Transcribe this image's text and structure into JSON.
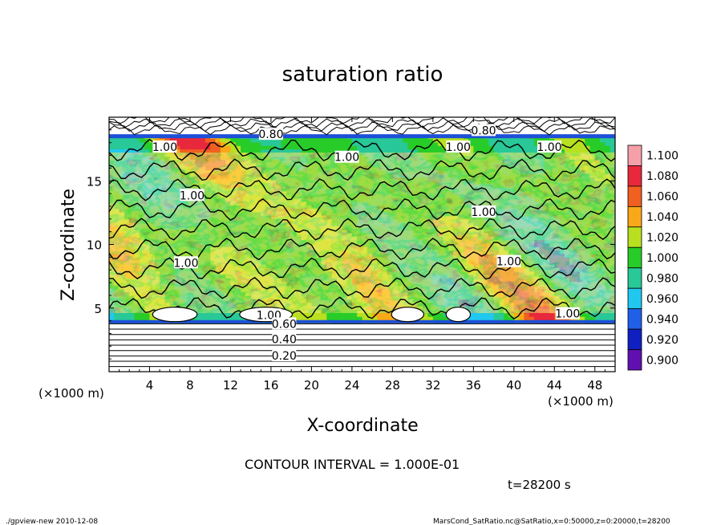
{
  "chart_data": {
    "type": "heatmap",
    "title": "saturation ratio",
    "xlabel": "X-coordinate",
    "ylabel": "Z-coordinate",
    "x_unit_left": "(×1000 m)",
    "x_unit_right": "(×1000 m)",
    "xlim": [
      0,
      50
    ],
    "ylim": [
      0,
      20
    ],
    "x_ticks": [
      4,
      8,
      12,
      16,
      20,
      24,
      28,
      32,
      36,
      40,
      44,
      48
    ],
    "y_ticks": [
      5,
      10,
      15
    ],
    "colorbar": {
      "levels": [
        "1.100",
        "1.080",
        "1.060",
        "1.040",
        "1.020",
        "1.000",
        "0.980",
        "0.960",
        "0.940",
        "0.920",
        "0.900"
      ],
      "colors": [
        "#f5a0a8",
        "#e8283c",
        "#f06020",
        "#f8a818",
        "#b8e020",
        "#28cc28",
        "#28c898",
        "#20c8f0",
        "#2060e8",
        "#1020c0",
        "#6010b0"
      ]
    },
    "contour_labels": [
      {
        "text": "0.80",
        "x": 16.0,
        "z": 18.6
      },
      {
        "text": "0.80",
        "x": 37.0,
        "z": 18.9
      },
      {
        "text": "1.00",
        "x": 5.5,
        "z": 17.6
      },
      {
        "text": "1.00",
        "x": 23.5,
        "z": 16.8
      },
      {
        "text": "1.00",
        "x": 34.5,
        "z": 17.6
      },
      {
        "text": "1.00",
        "x": 43.5,
        "z": 17.6
      },
      {
        "text": "1.00",
        "x": 8.2,
        "z": 13.8
      },
      {
        "text": "1.00",
        "x": 37.0,
        "z": 12.5
      },
      {
        "text": "1.00",
        "x": 7.6,
        "z": 8.5
      },
      {
        "text": "1.00",
        "x": 39.5,
        "z": 8.6
      },
      {
        "text": "1.00",
        "x": 15.8,
        "z": 4.4
      },
      {
        "text": "1.00",
        "x": 45.3,
        "z": 4.5
      },
      {
        "text": "0.60",
        "x": 17.3,
        "z": 3.7
      },
      {
        "text": "0.40",
        "x": 17.3,
        "z": 2.5
      },
      {
        "text": "0.20",
        "x": 17.3,
        "z": 1.2
      }
    ],
    "background_contour_levels": [
      0.2,
      0.4,
      0.6,
      0.8,
      1.0
    ],
    "grid": false
  },
  "contour_interval": "CONTOUR INTERVAL = 1.000E-01",
  "time_label": "t=28200 s",
  "footer_left": "./gpview-new   2010-12-08",
  "footer_right": "MarsCond_SatRatio.nc@SatRatio,x=0:50000,z=0:20000,t=28200"
}
